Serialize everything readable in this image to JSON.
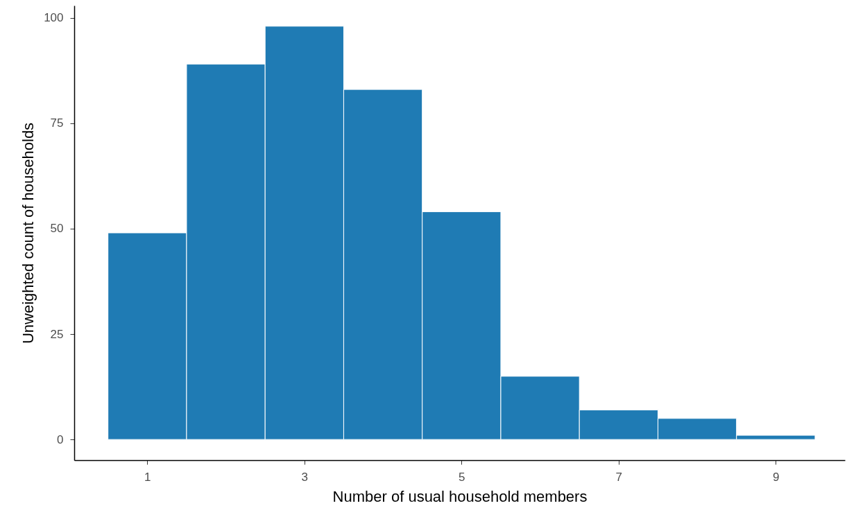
{
  "chart_data": {
    "type": "histogram",
    "xlabel": "Number of usual household members",
    "ylabel": "Unweighted count of households",
    "bins": [
      0.5,
      1.5,
      2.5,
      3.5,
      4.5,
      5.5,
      6.5,
      7.5,
      8.5,
      9.5
    ],
    "values": [
      49,
      89,
      98,
      83,
      54,
      15,
      7,
      5,
      1
    ],
    "color": "#1f7bb4",
    "xlim": [
      0.07,
      9.88
    ],
    "xticks": [
      1,
      3,
      5,
      7,
      9
    ],
    "ylim": [
      -4.9,
      102.9
    ],
    "yticks": [
      0,
      25,
      50,
      75,
      100
    ],
    "grid": false
  }
}
